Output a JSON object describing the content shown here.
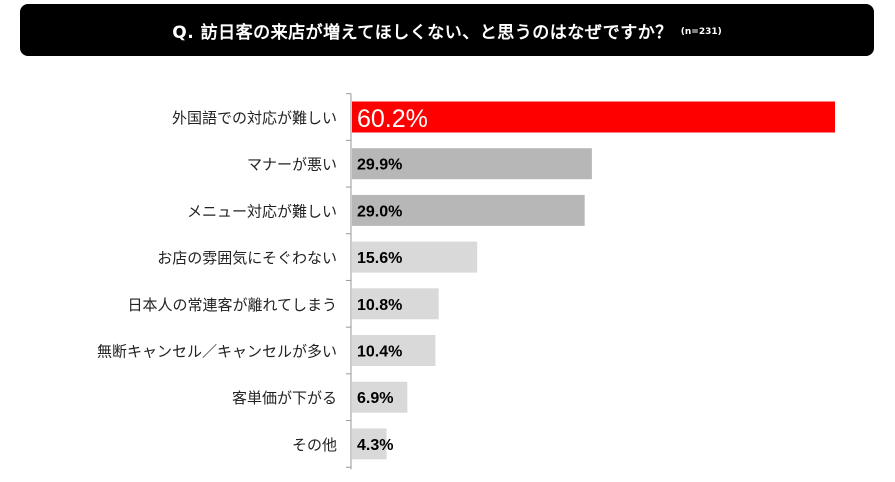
{
  "title": "Q. 訪日客の来店が増えてほしくない、と思うのはなぜですか？",
  "note": "(n=231)",
  "colors": {
    "highlight": "#ff0000",
    "dark_bar": "#b7b7b7",
    "light_bar": "#d9d9d9",
    "axis": "#999999"
  },
  "chart_data": {
    "type": "bar",
    "orientation": "horizontal",
    "categories": [
      "外国語での対応が難しい",
      "マナーが悪い",
      "メニュー対応が難しい",
      "お店の雰囲気にそぐわない",
      "日本人の常連客が離れてしまう",
      "無断キャンセル／キャンセルが多い",
      "客単価が下がる",
      "その他"
    ],
    "values": [
      60.2,
      29.9,
      29.0,
      15.6,
      10.8,
      10.4,
      6.9,
      4.3
    ],
    "labels": [
      "60.2%",
      "29.9%",
      "29.0%",
      "15.6%",
      "10.8%",
      "10.4%",
      "6.9%",
      "4.3%"
    ],
    "xlim": [
      0,
      60.2
    ],
    "grid": false
  }
}
